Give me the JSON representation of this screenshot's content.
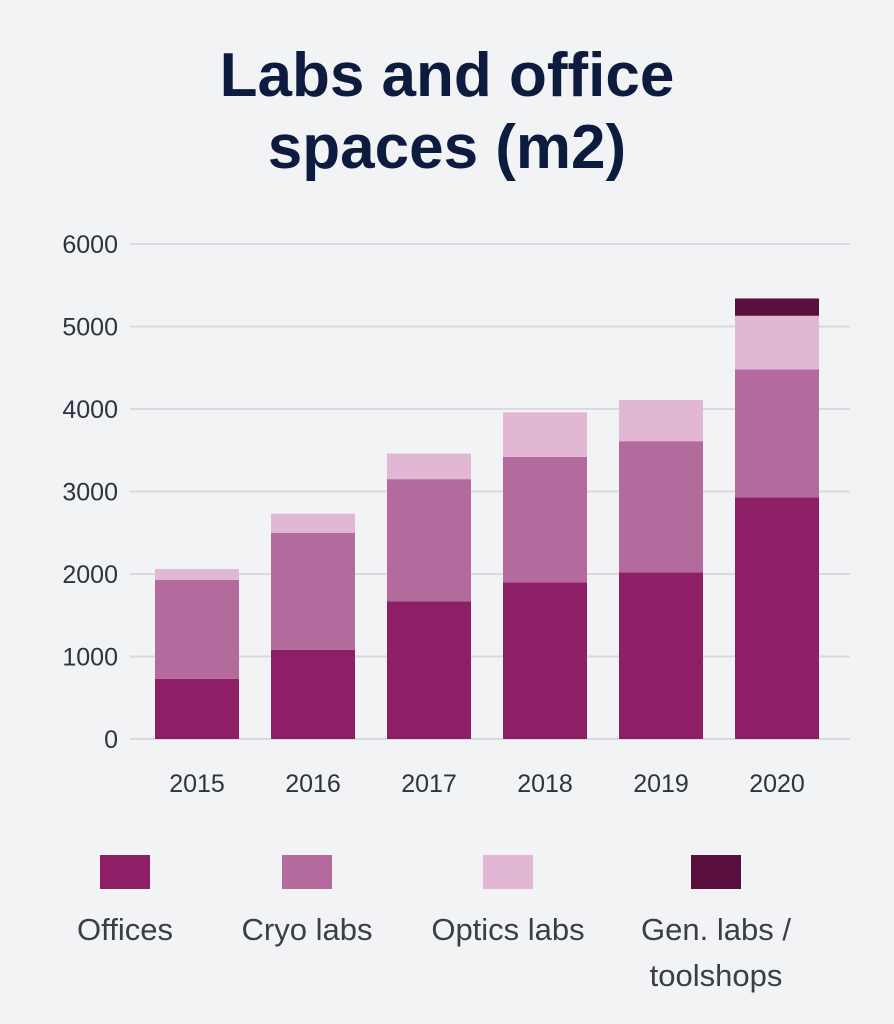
{
  "title_line1": "Labs and office",
  "title_line2": "spaces (m2)",
  "chart_data": {
    "type": "bar",
    "stacked": true,
    "title": "Labs and office spaces (m2)",
    "xlabel": "",
    "ylabel": "",
    "categories": [
      "2015",
      "2016",
      "2017",
      "2018",
      "2019",
      "2020"
    ],
    "ylim": [
      0,
      6000
    ],
    "yticks": [
      0,
      1000,
      2000,
      3000,
      4000,
      5000,
      6000
    ],
    "grid": true,
    "legend_position": "bottom",
    "series": [
      {
        "name": "Offices",
        "color": "#8e1f66",
        "values": [
          730,
          1080,
          1670,
          1900,
          2020,
          2930
        ]
      },
      {
        "name": "Cryo labs",
        "color": "#b36a9d",
        "values": [
          1200,
          1420,
          1480,
          1520,
          1590,
          1550
        ]
      },
      {
        "name": "Optics labs",
        "color": "#e1b7d3",
        "values": [
          130,
          230,
          310,
          540,
          500,
          650
        ]
      },
      {
        "name": "Gen. labs / toolshops",
        "color": "#5a0f3f",
        "values": [
          0,
          0,
          0,
          0,
          0,
          210
        ]
      }
    ]
  },
  "legend": [
    {
      "label": "Offices",
      "color": "#8e1f66"
    },
    {
      "label": "Cryo labs",
      "color": "#b36a9d"
    },
    {
      "label": "Optics labs",
      "color": "#e1b7d3"
    },
    {
      "label": "Gen. labs / toolshops",
      "color": "#5a0f3f"
    }
  ]
}
